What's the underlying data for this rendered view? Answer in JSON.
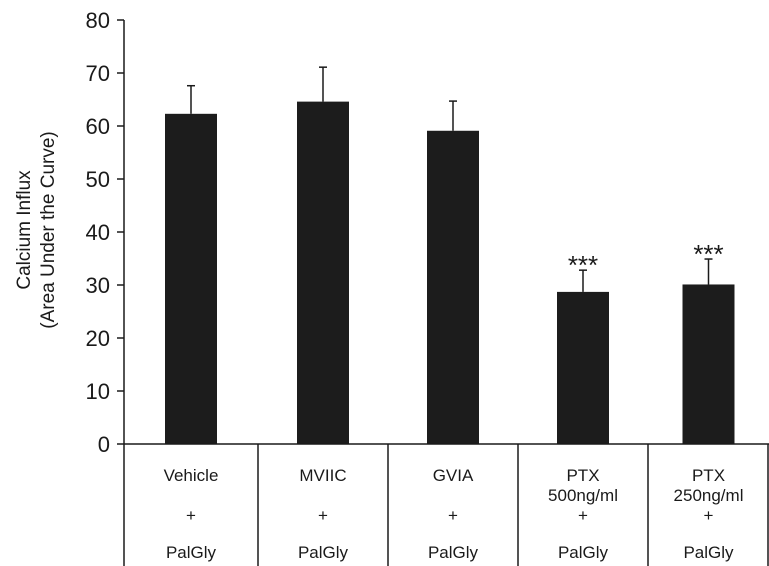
{
  "chart_data": {
    "type": "bar",
    "ylabel": [
      "Calcium Influx",
      "(Area Under the Curve)"
    ],
    "ylim": [
      0,
      80
    ],
    "yticks": [
      0,
      10,
      20,
      30,
      40,
      50,
      60,
      70,
      80
    ],
    "categories": [
      {
        "lines": [
          "Vehicle",
          "+",
          "PalGly"
        ]
      },
      {
        "lines": [
          "MVIIC",
          "+",
          "PalGly"
        ]
      },
      {
        "lines": [
          "GVIA",
          "+",
          "PalGly"
        ]
      },
      {
        "lines": [
          "PTX",
          "500ng/ml",
          "+",
          "PalGly"
        ]
      },
      {
        "lines": [
          "PTX",
          "250ng/ml",
          "+",
          "PalGly"
        ]
      }
    ],
    "values": [
      62.3,
      64.6,
      59.1,
      28.7,
      30.1
    ],
    "errors": [
      5.3,
      6.5,
      5.6,
      4.1,
      4.8
    ],
    "significance": [
      "",
      "",
      "",
      "***",
      "***"
    ],
    "colors": {
      "bar": "#1c1c1c",
      "axis": "#1a1a1a"
    },
    "grid": false,
    "legend": "none"
  }
}
